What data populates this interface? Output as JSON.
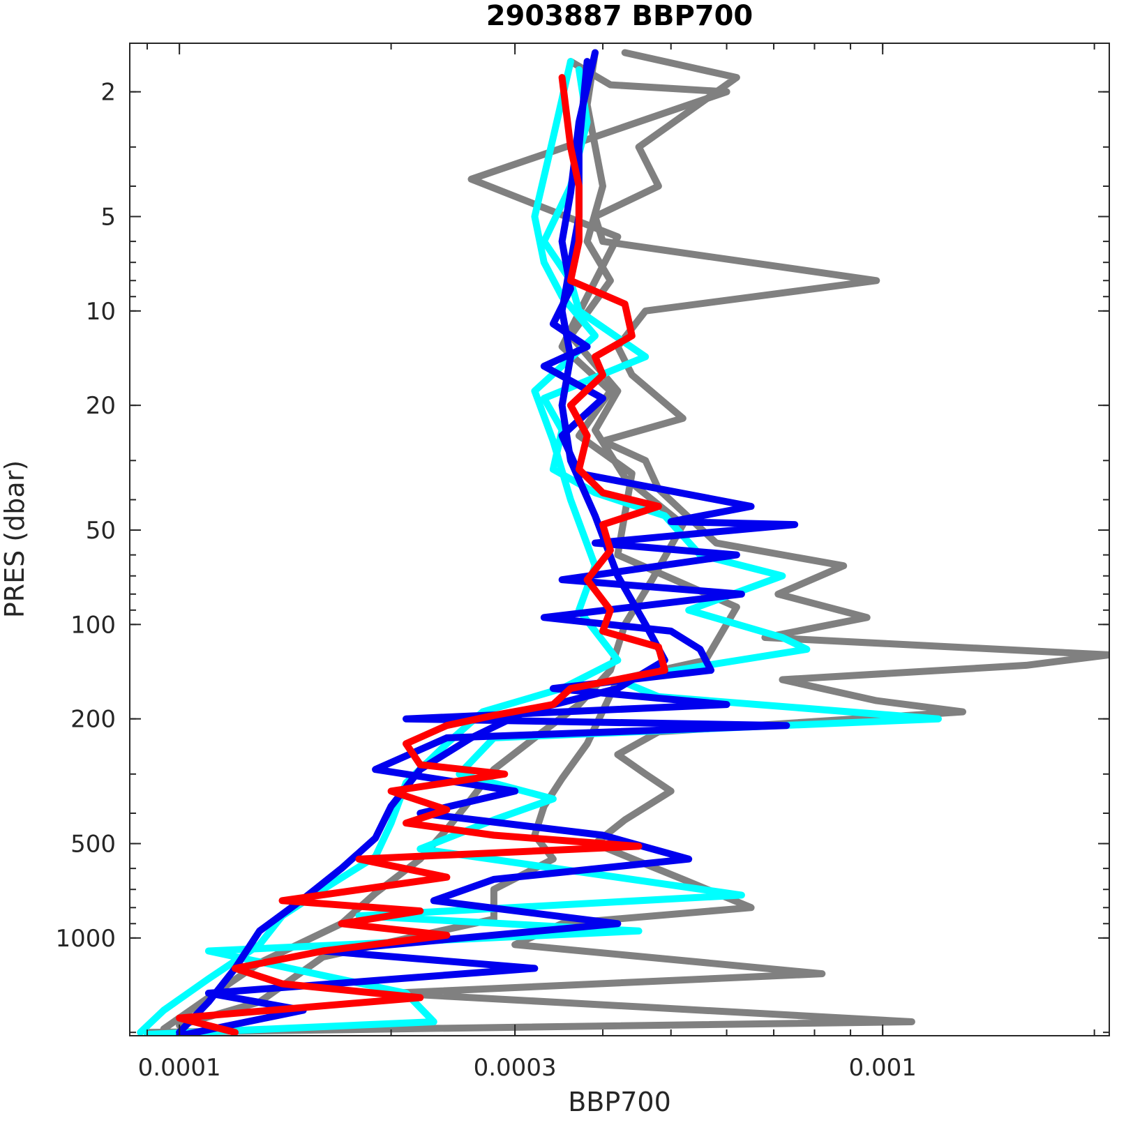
{
  "chart_data": {
    "type": "line",
    "title": "2903887 BBP700",
    "xlabel": "BBP700",
    "ylabel": "PRES (dbar)",
    "x_scale": "log",
    "y_scale": "log",
    "y_reversed": true,
    "xlim": [
      8.5e-05,
      0.0021
    ],
    "ylim": [
      1.4,
      2050
    ],
    "x_ticks": [
      {
        "value": 0.0001,
        "label": "0.0001"
      },
      {
        "value": 0.0003,
        "label": "0.0003"
      },
      {
        "value": 0.001,
        "label": "0.001"
      }
    ],
    "y_ticks": [
      {
        "value": 2,
        "label": "2"
      },
      {
        "value": 5,
        "label": "5"
      },
      {
        "value": 10,
        "label": "10"
      },
      {
        "value": 20,
        "label": "20"
      },
      {
        "value": 50,
        "label": "50"
      },
      {
        "value": 100,
        "label": "100"
      },
      {
        "value": 200,
        "label": "200"
      },
      {
        "value": 500,
        "label": "500"
      },
      {
        "value": 1000,
        "label": "1000"
      }
    ],
    "grid": false,
    "legend": "none",
    "colors": {
      "grey": "#808080",
      "cyan": "#00ffff",
      "blue": "#0000ee",
      "red": "#ff0000"
    },
    "series": [
      {
        "color": "grey",
        "points": [
          [
            0.00043,
            1.5
          ],
          [
            0.00062,
            1.8
          ],
          [
            0.00045,
            3
          ],
          [
            0.00048,
            4
          ],
          [
            0.00039,
            5
          ],
          [
            0.0004,
            6
          ],
          [
            0.00098,
            8
          ],
          [
            0.00046,
            10
          ],
          [
            0.00042,
            13
          ],
          [
            0.00044,
            16
          ],
          [
            0.00052,
            22
          ],
          [
            0.0004,
            26
          ],
          [
            0.00046,
            30
          ],
          [
            0.00048,
            37
          ],
          [
            0.00058,
            55
          ],
          [
            0.00088,
            65
          ],
          [
            0.00071,
            80
          ],
          [
            0.00095,
            95
          ],
          [
            0.00068,
            110
          ],
          [
            0.0021,
            125
          ],
          [
            0.0016,
            135
          ],
          [
            0.00072,
            150
          ],
          [
            0.00098,
            175
          ],
          [
            0.0013,
            190
          ],
          [
            0.00048,
            220
          ],
          [
            0.00042,
            260
          ],
          [
            0.00046,
            300
          ],
          [
            0.0005,
            340
          ],
          [
            0.00043,
            420
          ],
          [
            0.00039,
            500
          ],
          [
            0.00052,
            650
          ],
          [
            0.00065,
            800
          ],
          [
            0.00035,
            900
          ],
          [
            0.0003,
            1050
          ],
          [
            0.00082,
            1300
          ],
          [
            0.0002,
            1500
          ],
          [
            0.0011,
            1850
          ],
          [
            9e-05,
            2000
          ]
        ]
      },
      {
        "color": "grey",
        "points": [
          [
            0.00036,
            1.6
          ],
          [
            0.00041,
            1.9
          ],
          [
            0.0006,
            2.0
          ],
          [
            0.00026,
            3.8
          ],
          [
            0.00042,
            5.8
          ],
          [
            0.00038,
            9
          ],
          [
            0.00035,
            13
          ],
          [
            0.00041,
            18
          ],
          [
            0.00037,
            25
          ],
          [
            0.00044,
            33
          ],
          [
            0.00042,
            60
          ],
          [
            0.00062,
            88
          ],
          [
            0.00056,
            130
          ],
          [
            0.00042,
            150
          ],
          [
            0.00038,
            240
          ],
          [
            0.00035,
            310
          ],
          [
            0.00033,
            380
          ],
          [
            0.00032,
            470
          ],
          [
            0.00034,
            560
          ],
          [
            0.00028,
            700
          ],
          [
            0.00028,
            870
          ],
          [
            0.00016,
            1150
          ],
          [
            0.00013,
            1600
          ],
          [
            0.0001,
            1900
          ]
        ]
      },
      {
        "color": "grey",
        "points": [
          [
            0.00039,
            1.5
          ],
          [
            0.00038,
            2.2
          ],
          [
            0.0004,
            4
          ],
          [
            0.00038,
            6
          ],
          [
            0.00041,
            8
          ],
          [
            0.00036,
            12
          ],
          [
            0.00042,
            18
          ],
          [
            0.00039,
            24
          ],
          [
            0.00043,
            34
          ],
          [
            0.00052,
            48
          ],
          [
            0.00047,
            72
          ],
          [
            0.00043,
            100
          ],
          [
            0.00041,
            140
          ],
          [
            0.00037,
            180
          ],
          [
            0.00032,
            230
          ],
          [
            0.00028,
            290
          ],
          [
            0.00026,
            360
          ],
          [
            0.00024,
            450
          ],
          [
            0.00022,
            560
          ],
          [
            0.00019,
            720
          ],
          [
            0.00017,
            900
          ],
          [
            0.00013,
            1200
          ],
          [
            0.00011,
            1550
          ],
          [
            9.5e-05,
            1950
          ]
        ]
      },
      {
        "color": "cyan",
        "points": [
          [
            0.00037,
            1.7
          ],
          [
            0.00038,
            2.5
          ],
          [
            0.00036,
            4
          ],
          [
            0.00033,
            6
          ],
          [
            0.00036,
            8
          ],
          [
            0.00037,
            10
          ],
          [
            0.00046,
            14
          ],
          [
            0.00033,
            19
          ],
          [
            0.00035,
            24
          ],
          [
            0.00034,
            32
          ],
          [
            0.00039,
            38
          ],
          [
            0.00049,
            45
          ],
          [
            0.00055,
            60
          ],
          [
            0.00072,
            70
          ],
          [
            0.00053,
            90
          ],
          [
            0.00072,
            110
          ],
          [
            0.00078,
            120
          ],
          [
            0.00042,
            150
          ],
          [
            0.00048,
            170
          ],
          [
            0.0012,
            200
          ],
          [
            0.00028,
            230
          ],
          [
            0.00025,
            300
          ],
          [
            0.00034,
            360
          ],
          [
            0.00028,
            420
          ],
          [
            0.00022,
            520
          ],
          [
            0.00063,
            730
          ],
          [
            0.00018,
            850
          ],
          [
            0.00045,
            950
          ],
          [
            0.00011,
            1100
          ],
          [
            0.00021,
            1500
          ],
          [
            0.00023,
            1850
          ],
          [
            9e-05,
            2030
          ]
        ]
      },
      {
        "color": "cyan",
        "points": [
          [
            0.00036,
            1.6
          ],
          [
            0.00034,
            2.8
          ],
          [
            0.00032,
            5
          ],
          [
            0.00033,
            7
          ],
          [
            0.00035,
            9
          ],
          [
            0.00039,
            12
          ],
          [
            0.00032,
            18
          ],
          [
            0.00034,
            26
          ],
          [
            0.00036,
            40
          ],
          [
            0.00039,
            65
          ],
          [
            0.00037,
            90
          ],
          [
            0.00042,
            130
          ],
          [
            0.00035,
            160
          ],
          [
            0.00027,
            190
          ],
          [
            0.00024,
            240
          ],
          [
            0.00021,
            320
          ],
          [
            0.0002,
            430
          ],
          [
            0.00019,
            550
          ],
          [
            0.00016,
            700
          ],
          [
            0.00014,
            850
          ],
          [
            0.00013,
            1050
          ],
          [
            0.00011,
            1350
          ],
          [
            9.5e-05,
            1700
          ],
          [
            8.8e-05,
            2000
          ]
        ]
      },
      {
        "color": "blue",
        "points": [
          [
            0.00039,
            1.5
          ],
          [
            0.00037,
            2.5
          ],
          [
            0.00036,
            4.2
          ],
          [
            0.00035,
            6
          ],
          [
            0.00036,
            8.5
          ],
          [
            0.00034,
            11
          ],
          [
            0.00038,
            13
          ],
          [
            0.00033,
            15
          ],
          [
            0.0004,
            19
          ],
          [
            0.00035,
            25
          ],
          [
            0.00037,
            33
          ],
          [
            0.00065,
            42
          ],
          [
            0.0005,
            47
          ],
          [
            0.00075,
            48
          ],
          [
            0.00039,
            55
          ],
          [
            0.00062,
            60
          ],
          [
            0.00035,
            72
          ],
          [
            0.00063,
            80
          ],
          [
            0.00033,
            95
          ],
          [
            0.0005,
            105
          ],
          [
            0.00055,
            120
          ],
          [
            0.00057,
            140
          ],
          [
            0.00034,
            160
          ],
          [
            0.0006,
            180
          ],
          [
            0.00021,
            200
          ],
          [
            0.00073,
            210
          ],
          [
            0.00024,
            230
          ],
          [
            0.00019,
            290
          ],
          [
            0.0003,
            340
          ],
          [
            0.00022,
            400
          ],
          [
            0.0004,
            470
          ],
          [
            0.00053,
            560
          ],
          [
            0.00028,
            650
          ],
          [
            0.00023,
            760
          ],
          [
            0.00042,
            900
          ],
          [
            0.00016,
            1100
          ],
          [
            0.00032,
            1250
          ],
          [
            0.00011,
            1500
          ],
          [
            0.00015,
            1700
          ],
          [
            0.0001,
            2050
          ]
        ]
      },
      {
        "color": "blue",
        "points": [
          [
            0.00038,
            1.6
          ],
          [
            0.00037,
            3
          ],
          [
            0.00037,
            5
          ],
          [
            0.00036,
            7
          ],
          [
            0.00035,
            10
          ],
          [
            0.00036,
            14
          ],
          [
            0.00035,
            20
          ],
          [
            0.00036,
            30
          ],
          [
            0.00039,
            45
          ],
          [
            0.00042,
            70
          ],
          [
            0.00046,
            100
          ],
          [
            0.00049,
            130
          ],
          [
            0.00042,
            160
          ],
          [
            0.00031,
            190
          ],
          [
            0.00026,
            230
          ],
          [
            0.00022,
            290
          ],
          [
            0.0002,
            380
          ],
          [
            0.00019,
            480
          ],
          [
            0.00017,
            600
          ],
          [
            0.00015,
            750
          ],
          [
            0.00013,
            950
          ],
          [
            0.00012,
            1250
          ],
          [
            0.00011,
            1600
          ],
          [
            0.0001,
            2000
          ]
        ]
      },
      {
        "color": "red",
        "points": [
          [
            0.00035,
            1.8
          ],
          [
            0.00036,
            3
          ],
          [
            0.00037,
            4
          ],
          [
            0.00037,
            6
          ],
          [
            0.00036,
            8
          ],
          [
            0.00043,
            9.5
          ],
          [
            0.00044,
            12
          ],
          [
            0.00039,
            14
          ],
          [
            0.0004,
            16
          ],
          [
            0.00036,
            20
          ],
          [
            0.00038,
            25
          ],
          [
            0.00037,
            32
          ],
          [
            0.0004,
            38
          ],
          [
            0.00048,
            42
          ],
          [
            0.0004,
            48
          ],
          [
            0.00041,
            58
          ],
          [
            0.00038,
            72
          ],
          [
            0.00041,
            90
          ],
          [
            0.0004,
            105
          ],
          [
            0.00048,
            118
          ],
          [
            0.00049,
            140
          ],
          [
            0.00036,
            160
          ],
          [
            0.00034,
            180
          ],
          [
            0.00028,
            195
          ],
          [
            0.00024,
            210
          ],
          [
            0.00021,
            240
          ],
          [
            0.00022,
            280
          ],
          [
            0.00029,
            300
          ],
          [
            0.0002,
            340
          ],
          [
            0.00024,
            390
          ],
          [
            0.00021,
            430
          ],
          [
            0.00028,
            470
          ],
          [
            0.00045,
            510
          ],
          [
            0.00018,
            560
          ],
          [
            0.00024,
            640
          ],
          [
            0.00014,
            760
          ],
          [
            0.00022,
            820
          ],
          [
            0.00017,
            900
          ],
          [
            0.00024,
            980
          ],
          [
            0.00016,
            1100
          ],
          [
            0.00012,
            1250
          ],
          [
            0.00014,
            1400
          ],
          [
            0.00022,
            1550
          ],
          [
            0.0001,
            1800
          ],
          [
            0.00012,
            2000
          ]
        ]
      }
    ]
  }
}
